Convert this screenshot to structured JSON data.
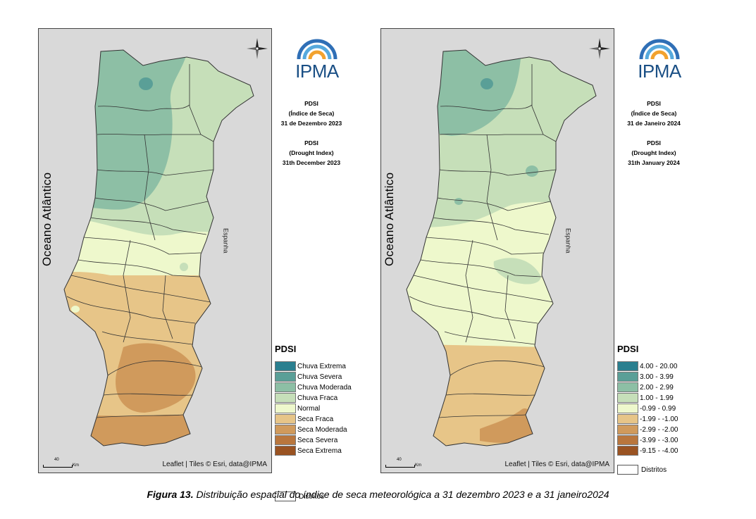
{
  "maps": [
    {
      "ocean_label": "Oceano Atlântico",
      "spain_label": "Espanha",
      "attribution": "Leaflet | Tiles © Esri, data@IPMA",
      "scale": {
        "value": "40",
        "unit": "Km"
      },
      "logo_text": "IPMA",
      "info": {
        "pt_title": "PDSI",
        "pt_subtitle": "(Índice de Seca)",
        "pt_date": "31 de Dezembro 2023",
        "en_title": "PDSI",
        "en_subtitle": "(Drought Index)",
        "en_date": "31th December 2023"
      },
      "legend": {
        "title": "PDSI",
        "items": [
          {
            "label": "Chuva Extrema",
            "color": "#2a7f8f"
          },
          {
            "label": "Chuva Severa",
            "color": "#5a9f97"
          },
          {
            "label": "Chuva Moderada",
            "color": "#8dbfa5"
          },
          {
            "label": "Chuva Fraca",
            "color": "#c6dfb9"
          },
          {
            "label": "Normal",
            "color": "#eef8cc"
          },
          {
            "label": "Seca Fraca",
            "color": "#e7c588"
          },
          {
            "label": "Seca Moderada",
            "color": "#d09a5c"
          },
          {
            "label": "Seca Severa",
            "color": "#b9763d"
          },
          {
            "label": "Seca Extrema",
            "color": "#9a5322"
          }
        ],
        "districts_label": "Distritos"
      }
    },
    {
      "ocean_label": "Oceano Atlântico",
      "spain_label": "Espanha",
      "attribution": "Leaflet | Tiles © Esri, data@IPMA",
      "scale": {
        "value": "40",
        "unit": "Km"
      },
      "logo_text": "IPMA",
      "info": {
        "pt_title": "PDSI",
        "pt_subtitle": "(Índice de Seca)",
        "pt_date": "31 de Janeiro 2024",
        "en_title": "PDSI",
        "en_subtitle": "(Drought Index)",
        "en_date": "31th January 2024"
      },
      "legend": {
        "title": "PDSI",
        "items": [
          {
            "label": "4.00 - 20.00",
            "color": "#2a7f8f"
          },
          {
            "label": "3.00 - 3.99",
            "color": "#5a9f97"
          },
          {
            "label": "2.00 - 2.99",
            "color": "#8dbfa5"
          },
          {
            "label": "1.00 - 1.99",
            "color": "#c6dfb9"
          },
          {
            "label": "-0.99 - 0.99",
            "color": "#eef8cc"
          },
          {
            "label": "-1.99 - -1.00",
            "color": "#e7c588"
          },
          {
            "label": "-2.99 - -2.00",
            "color": "#d09a5c"
          },
          {
            "label": "-3.99 - -3.00",
            "color": "#b9763d"
          },
          {
            "label": "-9.15 - -4.00",
            "color": "#9a5322"
          }
        ],
        "districts_label": "Distritos"
      }
    }
  ],
  "caption": {
    "label": "Figura 13.",
    "text": " Distribuição espacial do índice de seca meteorológica a 31 dezembro 2023 e a 31 janeiro2024"
  }
}
